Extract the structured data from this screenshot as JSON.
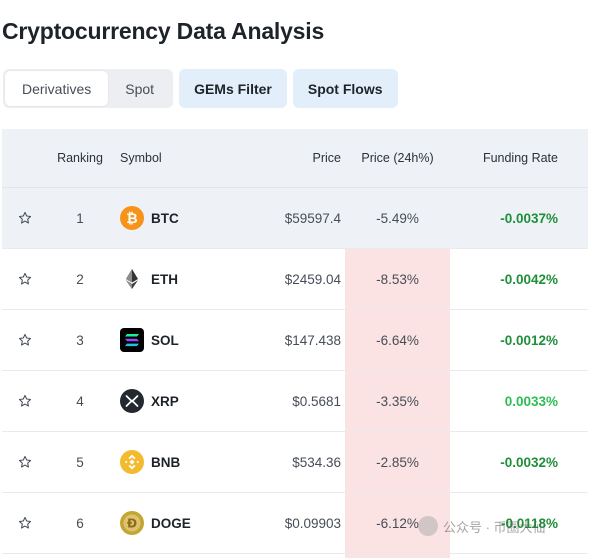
{
  "title": "Cryptocurrency Data Analysis",
  "tabs": [
    {
      "label": "Derivatives",
      "active": true
    },
    {
      "label": "Spot",
      "active": false
    }
  ],
  "actions": {
    "gems_filter": "GEMs Filter",
    "spot_flows": "Spot Flows"
  },
  "columns": {
    "ranking": "Ranking",
    "symbol": "Symbol",
    "price": "Price",
    "change": "Price (24h%)",
    "funding": "Funding Rate"
  },
  "rows": [
    {
      "rank": "1",
      "symbol": "BTC",
      "price": "$59597.4",
      "change": "-5.49%",
      "funding": "-0.0037%",
      "icon": "btc-coin-icon"
    },
    {
      "rank": "2",
      "symbol": "ETH",
      "price": "$2459.04",
      "change": "-8.53%",
      "funding": "-0.0042%",
      "icon": "eth-coin-icon"
    },
    {
      "rank": "3",
      "symbol": "SOL",
      "price": "$147.438",
      "change": "-6.64%",
      "funding": "-0.0012%",
      "icon": "sol-coin-icon"
    },
    {
      "rank": "4",
      "symbol": "XRP",
      "price": "$0.5681",
      "change": "-3.35%",
      "funding": "0.0033%",
      "icon": "xrp-coin-icon"
    },
    {
      "rank": "5",
      "symbol": "BNB",
      "price": "$534.36",
      "change": "-2.85%",
      "funding": "-0.0032%",
      "icon": "bnb-coin-icon"
    },
    {
      "rank": "6",
      "symbol": "DOGE",
      "price": "$0.09903",
      "change": "-6.12%",
      "funding": "-0.0118%",
      "icon": "doge-coin-icon"
    }
  ],
  "colors": {
    "negative_band": "#fbe3e3",
    "funding_negative": "#1f8f3a",
    "funding_positive": "#2ebd55",
    "accent_button": "#e2effa"
  },
  "watermark": "公众号 · 币圈大仙"
}
